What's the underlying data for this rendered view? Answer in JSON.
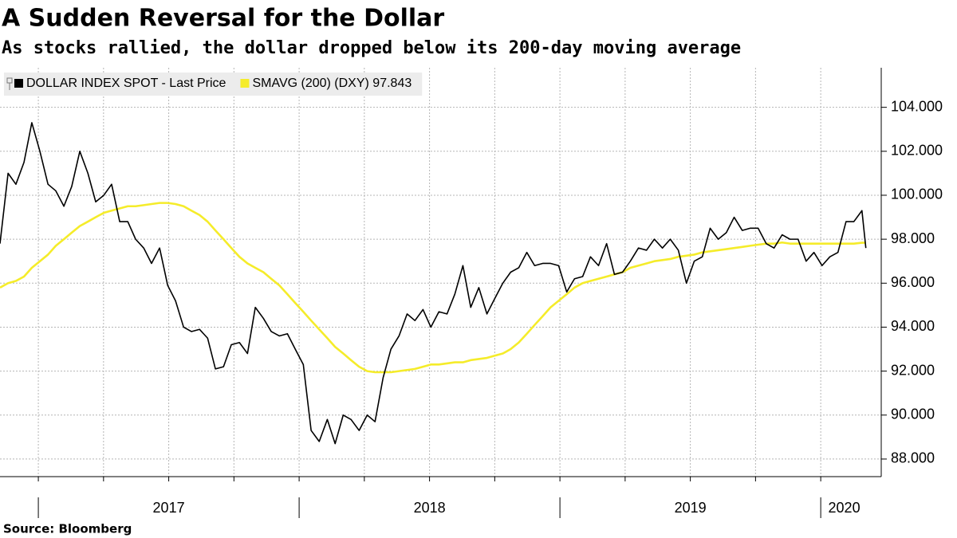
{
  "chart_data": {
    "type": "line",
    "title": "A Sudden Reversal for the Dollar",
    "subtitle": "As stocks rallied, the dollar dropped below its 200-day moving average",
    "source": "Source: Bloomberg",
    "x": [
      2016.853,
      2016.884,
      2016.914,
      2016.945,
      2016.975,
      2017.006,
      2017.037,
      2017.067,
      2017.098,
      2017.128,
      2017.159,
      2017.19,
      2017.22,
      2017.251,
      2017.281,
      2017.312,
      2017.343,
      2017.373,
      2017.404,
      2017.434,
      2017.465,
      2017.496,
      2017.526,
      2017.557,
      2017.587,
      2017.618,
      2017.649,
      2017.679,
      2017.71,
      2017.74,
      2017.771,
      2017.802,
      2017.832,
      2017.863,
      2017.893,
      2017.924,
      2017.955,
      2017.985,
      2018.016,
      2018.046,
      2018.077,
      2018.108,
      2018.138,
      2018.169,
      2018.199,
      2018.23,
      2018.261,
      2018.291,
      2018.322,
      2018.352,
      2018.383,
      2018.414,
      2018.444,
      2018.475,
      2018.505,
      2018.536,
      2018.567,
      2018.597,
      2018.628,
      2018.658,
      2018.689,
      2018.72,
      2018.75,
      2018.781,
      2018.811,
      2018.842,
      2018.873,
      2018.903,
      2018.934,
      2018.964,
      2018.995,
      2019.026,
      2019.056,
      2019.087,
      2019.117,
      2019.148,
      2019.179,
      2019.209,
      2019.24,
      2019.27,
      2019.301,
      2019.332,
      2019.362,
      2019.393,
      2019.423,
      2019.454,
      2019.485,
      2019.515,
      2019.546,
      2019.576,
      2019.607,
      2019.638,
      2019.668,
      2019.699,
      2019.729,
      2019.76,
      2019.791,
      2019.821,
      2019.852,
      2019.882,
      2019.913,
      2019.944,
      2019.974,
      2020.005,
      2020.035,
      2020.066,
      2020.097,
      2020.127,
      2020.158,
      2020.173
    ],
    "series": [
      {
        "name": "DOLLAR INDEX SPOT - Last Price",
        "color": "#000000",
        "width": 1.6,
        "values": [
          97.8,
          101.0,
          100.5,
          101.5,
          103.3,
          102.0,
          100.5,
          100.2,
          99.5,
          100.4,
          102.0,
          101.0,
          99.7,
          100.0,
          100.5,
          98.8,
          98.8,
          98.0,
          97.6,
          96.9,
          97.6,
          95.9,
          95.2,
          94.0,
          93.8,
          93.9,
          93.5,
          92.1,
          92.2,
          93.2,
          93.3,
          92.8,
          94.9,
          94.4,
          93.8,
          93.6,
          93.7,
          93.0,
          92.3,
          89.3,
          88.8,
          89.8,
          88.7,
          90.0,
          89.8,
          89.3,
          90.0,
          89.7,
          91.7,
          93.0,
          93.6,
          94.6,
          94.3,
          94.8,
          94.0,
          94.7,
          94.6,
          95.5,
          96.8,
          94.9,
          95.8,
          94.6,
          95.3,
          96.0,
          96.5,
          96.7,
          97.4,
          96.8,
          96.9,
          96.9,
          96.8,
          95.6,
          96.2,
          96.3,
          97.2,
          96.8,
          97.8,
          96.4,
          96.5,
          97.0,
          97.6,
          97.5,
          98.0,
          97.6,
          98.0,
          97.5,
          96.0,
          97.0,
          97.2,
          98.5,
          98.0,
          98.3,
          99.0,
          98.4,
          98.5,
          98.5,
          97.8,
          97.6,
          98.2,
          98.0,
          98.0,
          97.0,
          97.4,
          96.8,
          97.2,
          97.4,
          98.8,
          98.8,
          99.3,
          97.6
        ]
      },
      {
        "name": "SMAVG (200) (DXY) 97.843",
        "color": "#f5ec2a",
        "width": 2.6,
        "values": [
          95.8,
          96.0,
          96.1,
          96.3,
          96.7,
          97.0,
          97.3,
          97.7,
          98.0,
          98.3,
          98.6,
          98.8,
          99.0,
          99.2,
          99.3,
          99.4,
          99.5,
          99.5,
          99.55,
          99.6,
          99.65,
          99.65,
          99.6,
          99.5,
          99.3,
          99.1,
          98.8,
          98.4,
          98.0,
          97.6,
          97.2,
          96.9,
          96.7,
          96.5,
          96.2,
          95.9,
          95.5,
          95.1,
          94.7,
          94.3,
          93.9,
          93.5,
          93.1,
          92.8,
          92.5,
          92.2,
          92.0,
          91.95,
          91.95,
          91.95,
          92.0,
          92.05,
          92.1,
          92.2,
          92.3,
          92.3,
          92.35,
          92.4,
          92.4,
          92.5,
          92.55,
          92.6,
          92.7,
          92.8,
          93.0,
          93.3,
          93.7,
          94.1,
          94.5,
          94.9,
          95.2,
          95.5,
          95.8,
          96.0,
          96.1,
          96.2,
          96.3,
          96.4,
          96.5,
          96.7,
          96.8,
          96.9,
          97.0,
          97.05,
          97.1,
          97.2,
          97.25,
          97.3,
          97.4,
          97.45,
          97.5,
          97.55,
          97.6,
          97.65,
          97.7,
          97.75,
          97.8,
          97.8,
          97.85,
          97.8,
          97.8,
          97.8,
          97.8,
          97.8,
          97.8,
          97.8,
          97.8,
          97.8,
          97.84,
          97.84
        ]
      }
    ],
    "xlim": [
      2016.853,
      2020.232
    ],
    "xticks": [
      {
        "value": 2017.5,
        "label": "2017"
      },
      {
        "value": 2018.5,
        "label": "2018"
      },
      {
        "value": 2019.5,
        "label": "2019"
      },
      {
        "value": 2020.09,
        "label": "2020"
      }
    ],
    "xgrid": [
      2017,
      2017.25,
      2017.5,
      2017.75,
      2018,
      2018.25,
      2018.5,
      2018.75,
      2019,
      2019.25,
      2019.5,
      2019.75,
      2020
    ],
    "ylim": [
      87.2,
      105.8
    ],
    "yticks": [
      {
        "value": 88,
        "label": "88.000"
      },
      {
        "value": 90,
        "label": "90.000"
      },
      {
        "value": 92,
        "label": "92.000"
      },
      {
        "value": 94,
        "label": "94.000"
      },
      {
        "value": 96,
        "label": "96.000"
      },
      {
        "value": 98,
        "label": "98.000"
      },
      {
        "value": 100,
        "label": "100.000"
      },
      {
        "value": 102,
        "label": "102.000"
      },
      {
        "value": 104,
        "label": "104.000"
      }
    ],
    "grid": true,
    "legend": "top-left"
  }
}
